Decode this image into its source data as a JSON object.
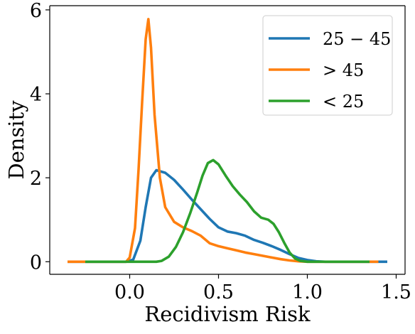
{
  "chart_data": {
    "type": "line",
    "title": "",
    "xlabel": "Recidivism Risk",
    "ylabel": "Density",
    "xlim": [
      -0.45,
      1.55
    ],
    "ylim": [
      -0.3,
      6.1
    ],
    "xticks": [
      0.0,
      0.5,
      1.0,
      1.5
    ],
    "xtick_labels": [
      "0.0",
      "0.5",
      "1.0",
      "1.5"
    ],
    "yticks": [
      0,
      2,
      4,
      6
    ],
    "ytick_labels": [
      "0",
      "2",
      "4",
      "6"
    ],
    "grid": false,
    "legend_position": "top-right",
    "series": [
      {
        "name": "25 − 45",
        "color": "#1f77b4",
        "points": [
          [
            -0.35,
            0
          ],
          [
            -0.02,
            0
          ],
          [
            0.02,
            0.05
          ],
          [
            0.06,
            0.5
          ],
          [
            0.09,
            1.3
          ],
          [
            0.12,
            2.0
          ],
          [
            0.15,
            2.18
          ],
          [
            0.2,
            2.12
          ],
          [
            0.25,
            1.95
          ],
          [
            0.3,
            1.72
          ],
          [
            0.35,
            1.48
          ],
          [
            0.4,
            1.25
          ],
          [
            0.45,
            1.02
          ],
          [
            0.5,
            0.82
          ],
          [
            0.55,
            0.72
          ],
          [
            0.6,
            0.68
          ],
          [
            0.65,
            0.62
          ],
          [
            0.7,
            0.52
          ],
          [
            0.75,
            0.45
          ],
          [
            0.8,
            0.37
          ],
          [
            0.85,
            0.28
          ],
          [
            0.9,
            0.18
          ],
          [
            0.95,
            0.09
          ],
          [
            1.0,
            0.04
          ],
          [
            1.05,
            0.01
          ],
          [
            1.1,
            0
          ],
          [
            1.45,
            0
          ]
        ]
      },
      {
        "name": "> 45",
        "color": "#ff7f0e",
        "points": [
          [
            -0.35,
            0
          ],
          [
            -0.02,
            0
          ],
          [
            0.0,
            0.1
          ],
          [
            0.03,
            0.8
          ],
          [
            0.05,
            2.2
          ],
          [
            0.07,
            3.8
          ],
          [
            0.09,
            5.3
          ],
          [
            0.105,
            5.78
          ],
          [
            0.12,
            5.1
          ],
          [
            0.14,
            3.5
          ],
          [
            0.17,
            2.0
          ],
          [
            0.2,
            1.3
          ],
          [
            0.25,
            0.95
          ],
          [
            0.3,
            0.82
          ],
          [
            0.35,
            0.73
          ],
          [
            0.4,
            0.62
          ],
          [
            0.45,
            0.44
          ],
          [
            0.5,
            0.37
          ],
          [
            0.55,
            0.32
          ],
          [
            0.6,
            0.27
          ],
          [
            0.65,
            0.22
          ],
          [
            0.7,
            0.18
          ],
          [
            0.75,
            0.14
          ],
          [
            0.8,
            0.1
          ],
          [
            0.85,
            0.06
          ],
          [
            0.9,
            0.03
          ],
          [
            0.95,
            0.01
          ],
          [
            1.0,
            0
          ],
          [
            1.4,
            0
          ]
        ]
      },
      {
        "name": "< 25",
        "color": "#2ca02c",
        "points": [
          [
            -0.25,
            0
          ],
          [
            0.15,
            0
          ],
          [
            0.18,
            0.02
          ],
          [
            0.22,
            0.12
          ],
          [
            0.26,
            0.35
          ],
          [
            0.3,
            0.7
          ],
          [
            0.34,
            1.15
          ],
          [
            0.38,
            1.65
          ],
          [
            0.41,
            2.05
          ],
          [
            0.44,
            2.35
          ],
          [
            0.47,
            2.42
          ],
          [
            0.5,
            2.32
          ],
          [
            0.54,
            2.05
          ],
          [
            0.58,
            1.8
          ],
          [
            0.62,
            1.6
          ],
          [
            0.66,
            1.42
          ],
          [
            0.7,
            1.2
          ],
          [
            0.74,
            1.05
          ],
          [
            0.78,
            1.0
          ],
          [
            0.81,
            0.9
          ],
          [
            0.84,
            0.7
          ],
          [
            0.87,
            0.45
          ],
          [
            0.9,
            0.22
          ],
          [
            0.93,
            0.08
          ],
          [
            0.96,
            0.02
          ],
          [
            1.0,
            0
          ],
          [
            1.35,
            0
          ]
        ]
      }
    ]
  },
  "legend": {
    "items": [
      {
        "label": "25 − 45",
        "color": "#1f77b4"
      },
      {
        "label": "> 45",
        "color": "#ff7f0e"
      },
      {
        "label": "< 25",
        "color": "#2ca02c"
      }
    ]
  }
}
